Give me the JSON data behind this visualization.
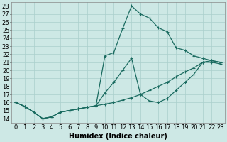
{
  "xlabel": "Humidex (Indice chaleur)",
  "bg_color": "#cde8e5",
  "grid_color": "#aacfcc",
  "line_color": "#1a6b60",
  "marker": "+",
  "marker_size": 3,
  "marker_lw": 0.8,
  "xlim": [
    -0.5,
    23.5
  ],
  "ylim": [
    13.5,
    28.5
  ],
  "xticks": [
    0,
    1,
    2,
    3,
    4,
    5,
    6,
    7,
    8,
    9,
    10,
    11,
    12,
    13,
    14,
    15,
    16,
    17,
    18,
    19,
    20,
    21,
    22,
    23
  ],
  "yticks": [
    14,
    15,
    16,
    17,
    18,
    19,
    20,
    21,
    22,
    23,
    24,
    25,
    26,
    27,
    28
  ],
  "line1_x": [
    0,
    1,
    2,
    3,
    4,
    5,
    6,
    7,
    8,
    9,
    10,
    11,
    12,
    13,
    14,
    15,
    16,
    17,
    18,
    19,
    20,
    21,
    22,
    23
  ],
  "line1_y": [
    16.0,
    15.5,
    14.8,
    14.0,
    14.2,
    14.8,
    15.0,
    15.2,
    15.4,
    15.6,
    15.8,
    16.0,
    16.3,
    16.6,
    17.0,
    17.5,
    18.0,
    18.5,
    19.2,
    19.8,
    20.3,
    21.0,
    21.0,
    20.8
  ],
  "line2_x": [
    0,
    1,
    2,
    3,
    4,
    5,
    6,
    7,
    8,
    9,
    10,
    11,
    12,
    13,
    14,
    15,
    16,
    17,
    18,
    19,
    20,
    21,
    22,
    23
  ],
  "line2_y": [
    16.0,
    15.5,
    14.8,
    14.0,
    14.2,
    14.8,
    15.0,
    15.2,
    15.4,
    15.6,
    17.2,
    18.5,
    20.0,
    21.5,
    17.0,
    16.2,
    16.0,
    16.5,
    17.5,
    18.5,
    19.5,
    21.0,
    21.2,
    21.0
  ],
  "line3_x": [
    0,
    1,
    2,
    3,
    4,
    5,
    6,
    7,
    8,
    9,
    10,
    11,
    12,
    13,
    14,
    15,
    16,
    17,
    18,
    19,
    20,
    21,
    22,
    23
  ],
  "line3_y": [
    16.0,
    15.5,
    14.8,
    14.0,
    14.2,
    14.8,
    15.0,
    15.2,
    15.4,
    15.6,
    21.8,
    22.2,
    25.2,
    28.0,
    27.0,
    26.5,
    25.3,
    24.8,
    22.8,
    22.5,
    21.8,
    21.5,
    21.2,
    21.0
  ],
  "xlabel_fontsize": 7,
  "tick_fontsize": 6,
  "line_width": 0.9
}
